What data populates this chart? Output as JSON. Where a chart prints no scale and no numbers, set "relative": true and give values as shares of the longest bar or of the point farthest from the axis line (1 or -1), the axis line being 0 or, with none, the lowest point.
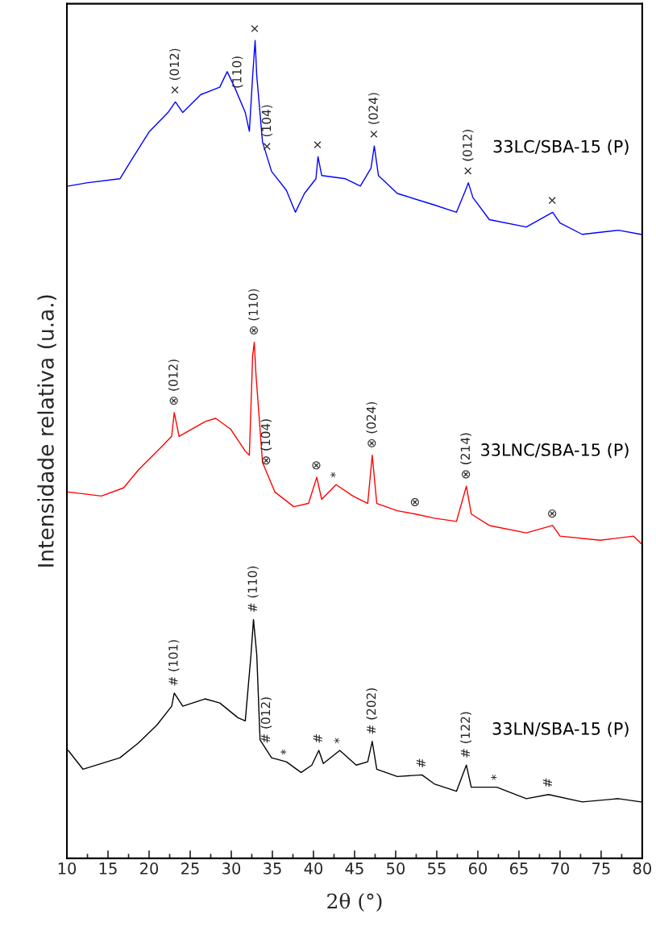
{
  "chart_data": {
    "type": "line",
    "relative": true,
    "xlabel": "2θ (°)",
    "ylabel": "Intensidade relativa (u.a.)",
    "xlim": [
      10,
      80
    ],
    "xticks": [
      10,
      {
        "value": 12.5,
        "label": null
      },
      15,
      {
        "value": 17.5,
        "label": null
      },
      20,
      {
        "value": 22.5,
        "label": null
      },
      25,
      {
        "value": 27.5,
        "label": null
      },
      30,
      {
        "value": 32.5,
        "label": null
      },
      35,
      {
        "value": 37.5,
        "label": null
      },
      40,
      {
        "value": 42.5,
        "label": null
      },
      45,
      {
        "value": 47.5,
        "label": null
      },
      50,
      {
        "value": 52.5,
        "label": null
      },
      55,
      {
        "value": 57.5,
        "label": null
      },
      60,
      {
        "value": 62.5,
        "label": null
      },
      65,
      {
        "value": 67.5,
        "label": null
      },
      70,
      {
        "value": 72.5,
        "label": null
      },
      75,
      {
        "value": 77.5,
        "label": null
      },
      80
    ],
    "tick_labels": "x",
    "grid": false,
    "legend": false,
    "marker": "none",
    "line_style": "solid",
    "series": [
      {
        "name": "33LC/SBA-15 (P)",
        "color": "#0000ff",
        "x": [
          10.16,
          12.4,
          16.45,
          17.8,
          20.05,
          22.3,
          23.2,
          24.1,
          26.3,
          28.6,
          29.5,
          30.4,
          31.7,
          32.2,
          32.6,
          32.9,
          33.1,
          33.8,
          34.9,
          36.7,
          37.8,
          38.9,
          40.3,
          40.55,
          41.0,
          43.9,
          45.7,
          47.0,
          47.4,
          47.9,
          50.2,
          54.7,
          57.4,
          58.5,
          58.85,
          59.4,
          61.4,
          65.9,
          69.1,
          70.0,
          72.7,
          77.1,
          79.85
        ],
        "values": [
          0.822,
          0.826,
          0.831,
          0.853,
          0.889,
          0.912,
          0.925,
          0.912,
          0.934,
          0.943,
          0.962,
          0.943,
          0.912,
          0.889,
          0.957,
          1.0,
          0.957,
          0.876,
          0.84,
          0.817,
          0.79,
          0.813,
          0.831,
          0.858,
          0.835,
          0.831,
          0.822,
          0.844,
          0.871,
          0.835,
          0.813,
          0.799,
          0.79,
          0.817,
          0.826,
          0.808,
          0.781,
          0.772,
          0.79,
          0.777,
          0.763,
          0.768,
          0.763
        ]
      },
      {
        "name": "33LNC/SBA-15 (P)",
        "color": "#ff0000",
        "x": [
          10.16,
          14.2,
          16.9,
          18.7,
          21.4,
          22.75,
          23.06,
          23.65,
          26.8,
          28.1,
          29.9,
          31.7,
          32.2,
          32.6,
          32.8,
          33.0,
          33.8,
          35.3,
          37.6,
          39.4,
          40.4,
          41.0,
          42.75,
          44.8,
          46.6,
          47.15,
          47.7,
          50.2,
          52.4,
          54.7,
          57.4,
          58.6,
          59.2,
          61.4,
          65.9,
          69.1,
          70.0,
          74.9,
          78.95,
          79.85
        ],
        "values": [
          0.448,
          0.443,
          0.453,
          0.475,
          0.502,
          0.516,
          0.545,
          0.516,
          0.534,
          0.538,
          0.525,
          0.498,
          0.493,
          0.615,
          0.631,
          0.592,
          0.484,
          0.448,
          0.43,
          0.434,
          0.466,
          0.439,
          0.457,
          0.443,
          0.434,
          0.493,
          0.434,
          0.425,
          0.421,
          0.416,
          0.412,
          0.455,
          0.421,
          0.407,
          0.398,
          0.407,
          0.394,
          0.389,
          0.394,
          0.385
        ]
      },
      {
        "name": "33LN/SBA-15 (P)",
        "color": "#000000",
        "x": [
          10.16,
          11.95,
          16.45,
          18.7,
          20.95,
          22.75,
          23.06,
          24.1,
          26.8,
          28.6,
          30.8,
          31.7,
          32.4,
          32.7,
          33.1,
          33.5,
          34.9,
          36.7,
          38.5,
          39.8,
          40.65,
          41.2,
          43.2,
          45.2,
          46.6,
          47.15,
          47.7,
          50.2,
          53.2,
          54.7,
          57.4,
          58.6,
          59.2,
          62.3,
          65.9,
          68.6,
          72.7,
          77.1,
          79.85
        ],
        "values": [
          0.132,
          0.109,
          0.123,
          0.141,
          0.163,
          0.186,
          0.202,
          0.186,
          0.195,
          0.19,
          0.172,
          0.168,
          0.249,
          0.292,
          0.249,
          0.145,
          0.123,
          0.118,
          0.105,
          0.114,
          0.132,
          0.116,
          0.132,
          0.114,
          0.118,
          0.143,
          0.109,
          0.1,
          0.102,
          0.091,
          0.082,
          0.114,
          0.087,
          0.087,
          0.073,
          0.078,
          0.069,
          0.073,
          0.069
        ]
      }
    ],
    "annotations": [
      {
        "text": "× (012)",
        "x": 23.2,
        "y": 0.925
      },
      {
        "text": "(110)",
        "x": 30.8,
        "y": 0.933
      },
      {
        "text": "×",
        "x": 32.9,
        "y": 1.0
      },
      {
        "text": "× (104)",
        "x": 34.4,
        "y": 0.856
      },
      {
        "text": "×",
        "x": 40.55,
        "y": 0.858
      },
      {
        "text": "× (024)",
        "x": 47.4,
        "y": 0.871
      },
      {
        "text": "× (012)",
        "x": 58.85,
        "y": 0.826
      },
      {
        "text": "×",
        "x": 69.1,
        "y": 0.79
      },
      {
        "text": "⊗ (012)",
        "x": 23.06,
        "y": 0.545
      },
      {
        "text": "⊗ (110)",
        "x": 32.8,
        "y": 0.631
      },
      {
        "text": "⊗ (104)",
        "x": 34.3,
        "y": 0.472
      },
      {
        "text": "⊗",
        "x": 40.4,
        "y": 0.466
      },
      {
        "text": "*",
        "x": 42.75,
        "y": 0.457
      },
      {
        "text": "⊗ (024)",
        "x": 47.15,
        "y": 0.493
      },
      {
        "text": "⊗",
        "x": 52.4,
        "y": 0.421
      },
      {
        "text": "⊗ (214)",
        "x": 58.6,
        "y": 0.455
      },
      {
        "text": "⊗",
        "x": 69.1,
        "y": 0.407
      },
      {
        "text": "# (101)",
        "x": 23.06,
        "y": 0.202
      },
      {
        "text": "# (110)",
        "x": 32.7,
        "y": 0.292
      },
      {
        "text": "# (012)",
        "x": 34.3,
        "y": 0.132
      },
      {
        "text": "*",
        "x": 36.7,
        "y": 0.118
      },
      {
        "text": "#",
        "x": 40.65,
        "y": 0.132
      },
      {
        "text": "*",
        "x": 43.2,
        "y": 0.132
      },
      {
        "text": "# (202)",
        "x": 47.15,
        "y": 0.143
      },
      {
        "text": "#",
        "x": 53.2,
        "y": 0.102
      },
      {
        "text": "# (122)",
        "x": 58.6,
        "y": 0.114
      },
      {
        "text": "*",
        "x": 62.3,
        "y": 0.087
      },
      {
        "text": "#",
        "x": 68.6,
        "y": 0.078
      }
    ]
  }
}
